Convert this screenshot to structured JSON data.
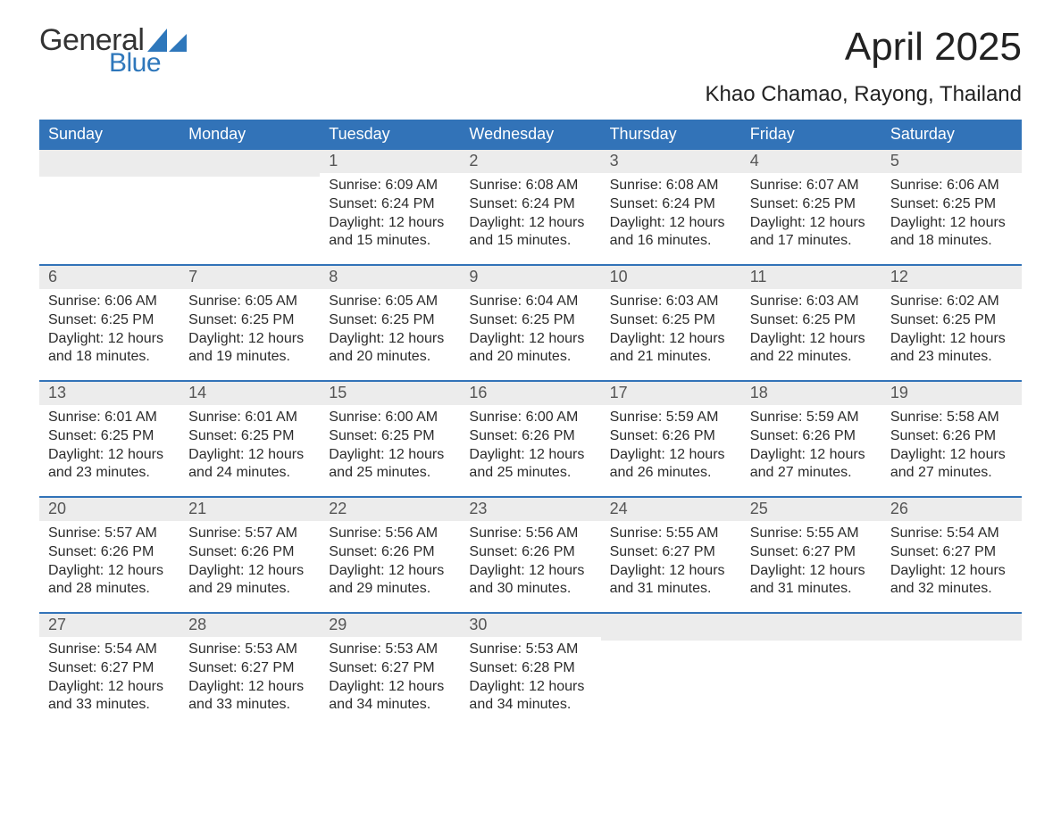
{
  "brand": {
    "word1": "General",
    "word2": "Blue",
    "general_color": "#333333",
    "blue_color": "#2e77bb",
    "sail_color": "#2e77bb"
  },
  "title": "April 2025",
  "location": "Khao Chamao, Rayong, Thailand",
  "colors": {
    "header_bg": "#3273b8",
    "header_text": "#ffffff",
    "week_border": "#3273b8",
    "daynum_bg": "#ececec",
    "daynum_text": "#555555",
    "body_text": "#2b2b2b",
    "page_bg": "#ffffff"
  },
  "typography": {
    "title_fontsize": 44,
    "location_fontsize": 24,
    "header_fontsize": 18,
    "daynum_fontsize": 18,
    "body_fontsize": 16,
    "font_family": "Arial"
  },
  "day_labels": [
    "Sunday",
    "Monday",
    "Tuesday",
    "Wednesday",
    "Thursday",
    "Friday",
    "Saturday"
  ],
  "weeks": [
    [
      {
        "n": "",
        "sunrise": "",
        "sunset": "",
        "daylight": ""
      },
      {
        "n": "",
        "sunrise": "",
        "sunset": "",
        "daylight": ""
      },
      {
        "n": "1",
        "sunrise": "Sunrise: 6:09 AM",
        "sunset": "Sunset: 6:24 PM",
        "daylight": "Daylight: 12 hours and 15 minutes."
      },
      {
        "n": "2",
        "sunrise": "Sunrise: 6:08 AM",
        "sunset": "Sunset: 6:24 PM",
        "daylight": "Daylight: 12 hours and 15 minutes."
      },
      {
        "n": "3",
        "sunrise": "Sunrise: 6:08 AM",
        "sunset": "Sunset: 6:24 PM",
        "daylight": "Daylight: 12 hours and 16 minutes."
      },
      {
        "n": "4",
        "sunrise": "Sunrise: 6:07 AM",
        "sunset": "Sunset: 6:25 PM",
        "daylight": "Daylight: 12 hours and 17 minutes."
      },
      {
        "n": "5",
        "sunrise": "Sunrise: 6:06 AM",
        "sunset": "Sunset: 6:25 PM",
        "daylight": "Daylight: 12 hours and 18 minutes."
      }
    ],
    [
      {
        "n": "6",
        "sunrise": "Sunrise: 6:06 AM",
        "sunset": "Sunset: 6:25 PM",
        "daylight": "Daylight: 12 hours and 18 minutes."
      },
      {
        "n": "7",
        "sunrise": "Sunrise: 6:05 AM",
        "sunset": "Sunset: 6:25 PM",
        "daylight": "Daylight: 12 hours and 19 minutes."
      },
      {
        "n": "8",
        "sunrise": "Sunrise: 6:05 AM",
        "sunset": "Sunset: 6:25 PM",
        "daylight": "Daylight: 12 hours and 20 minutes."
      },
      {
        "n": "9",
        "sunrise": "Sunrise: 6:04 AM",
        "sunset": "Sunset: 6:25 PM",
        "daylight": "Daylight: 12 hours and 20 minutes."
      },
      {
        "n": "10",
        "sunrise": "Sunrise: 6:03 AM",
        "sunset": "Sunset: 6:25 PM",
        "daylight": "Daylight: 12 hours and 21 minutes."
      },
      {
        "n": "11",
        "sunrise": "Sunrise: 6:03 AM",
        "sunset": "Sunset: 6:25 PM",
        "daylight": "Daylight: 12 hours and 22 minutes."
      },
      {
        "n": "12",
        "sunrise": "Sunrise: 6:02 AM",
        "sunset": "Sunset: 6:25 PM",
        "daylight": "Daylight: 12 hours and 23 minutes."
      }
    ],
    [
      {
        "n": "13",
        "sunrise": "Sunrise: 6:01 AM",
        "sunset": "Sunset: 6:25 PM",
        "daylight": "Daylight: 12 hours and 23 minutes."
      },
      {
        "n": "14",
        "sunrise": "Sunrise: 6:01 AM",
        "sunset": "Sunset: 6:25 PM",
        "daylight": "Daylight: 12 hours and 24 minutes."
      },
      {
        "n": "15",
        "sunrise": "Sunrise: 6:00 AM",
        "sunset": "Sunset: 6:25 PM",
        "daylight": "Daylight: 12 hours and 25 minutes."
      },
      {
        "n": "16",
        "sunrise": "Sunrise: 6:00 AM",
        "sunset": "Sunset: 6:26 PM",
        "daylight": "Daylight: 12 hours and 25 minutes."
      },
      {
        "n": "17",
        "sunrise": "Sunrise: 5:59 AM",
        "sunset": "Sunset: 6:26 PM",
        "daylight": "Daylight: 12 hours and 26 minutes."
      },
      {
        "n": "18",
        "sunrise": "Sunrise: 5:59 AM",
        "sunset": "Sunset: 6:26 PM",
        "daylight": "Daylight: 12 hours and 27 minutes."
      },
      {
        "n": "19",
        "sunrise": "Sunrise: 5:58 AM",
        "sunset": "Sunset: 6:26 PM",
        "daylight": "Daylight: 12 hours and 27 minutes."
      }
    ],
    [
      {
        "n": "20",
        "sunrise": "Sunrise: 5:57 AM",
        "sunset": "Sunset: 6:26 PM",
        "daylight": "Daylight: 12 hours and 28 minutes."
      },
      {
        "n": "21",
        "sunrise": "Sunrise: 5:57 AM",
        "sunset": "Sunset: 6:26 PM",
        "daylight": "Daylight: 12 hours and 29 minutes."
      },
      {
        "n": "22",
        "sunrise": "Sunrise: 5:56 AM",
        "sunset": "Sunset: 6:26 PM",
        "daylight": "Daylight: 12 hours and 29 minutes."
      },
      {
        "n": "23",
        "sunrise": "Sunrise: 5:56 AM",
        "sunset": "Sunset: 6:26 PM",
        "daylight": "Daylight: 12 hours and 30 minutes."
      },
      {
        "n": "24",
        "sunrise": "Sunrise: 5:55 AM",
        "sunset": "Sunset: 6:27 PM",
        "daylight": "Daylight: 12 hours and 31 minutes."
      },
      {
        "n": "25",
        "sunrise": "Sunrise: 5:55 AM",
        "sunset": "Sunset: 6:27 PM",
        "daylight": "Daylight: 12 hours and 31 minutes."
      },
      {
        "n": "26",
        "sunrise": "Sunrise: 5:54 AM",
        "sunset": "Sunset: 6:27 PM",
        "daylight": "Daylight: 12 hours and 32 minutes."
      }
    ],
    [
      {
        "n": "27",
        "sunrise": "Sunrise: 5:54 AM",
        "sunset": "Sunset: 6:27 PM",
        "daylight": "Daylight: 12 hours and 33 minutes."
      },
      {
        "n": "28",
        "sunrise": "Sunrise: 5:53 AM",
        "sunset": "Sunset: 6:27 PM",
        "daylight": "Daylight: 12 hours and 33 minutes."
      },
      {
        "n": "29",
        "sunrise": "Sunrise: 5:53 AM",
        "sunset": "Sunset: 6:27 PM",
        "daylight": "Daylight: 12 hours and 34 minutes."
      },
      {
        "n": "30",
        "sunrise": "Sunrise: 5:53 AM",
        "sunset": "Sunset: 6:28 PM",
        "daylight": "Daylight: 12 hours and 34 minutes."
      },
      {
        "n": "",
        "sunrise": "",
        "sunset": "",
        "daylight": ""
      },
      {
        "n": "",
        "sunrise": "",
        "sunset": "",
        "daylight": ""
      },
      {
        "n": "",
        "sunrise": "",
        "sunset": "",
        "daylight": ""
      }
    ]
  ]
}
